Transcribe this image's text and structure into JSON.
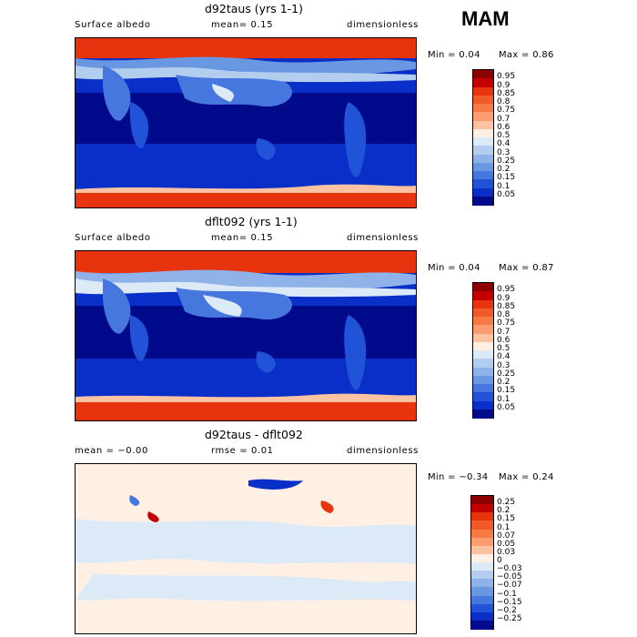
{
  "season": "MAM",
  "panels": [
    {
      "title": "d92taus (yrs 1-1)",
      "variable": "Surface albedo",
      "left_stat": "mean=   0.15",
      "mid_stat": "",
      "units": "dimensionless",
      "min_text": "Min =    0.04",
      "max_text": "Max =    0.86",
      "colorbar_labels": [
        "0.95",
        "0.9",
        "0.85",
        "0.8",
        "0.75",
        "0.7",
        "0.6",
        "0.5",
        "0.4",
        "0.3",
        "0.25",
        "0.2",
        "0.15",
        "0.1",
        "0.05"
      ],
      "colors": [
        "#8c0000",
        "#c40000",
        "#e8330f",
        "#f25a2a",
        "#f77a45",
        "#fb9d70",
        "#fcc3a3",
        "#fff0e3",
        "#dce9f7",
        "#b3cdee",
        "#8fb2e8",
        "#6a97e2",
        "#4577de",
        "#2153d8",
        "#0a2ec8",
        "#000a8a"
      ]
    },
    {
      "title": "dflt092 (yrs 1-1)",
      "variable": "Surface albedo",
      "left_stat": "mean=   0.15",
      "mid_stat": "",
      "units": "dimensionless",
      "min_text": "Min =    0.04",
      "max_text": "Max =    0.87",
      "colorbar_labels": [
        "0.95",
        "0.9",
        "0.85",
        "0.8",
        "0.75",
        "0.7",
        "0.6",
        "0.5",
        "0.4",
        "0.3",
        "0.25",
        "0.2",
        "0.15",
        "0.1",
        "0.05"
      ],
      "colors": [
        "#8c0000",
        "#c40000",
        "#e8330f",
        "#f25a2a",
        "#f77a45",
        "#fb9d70",
        "#fcc3a3",
        "#fff0e3",
        "#dce9f7",
        "#b3cdee",
        "#8fb2e8",
        "#6a97e2",
        "#4577de",
        "#2153d8",
        "#0a2ec8",
        "#000a8a"
      ]
    },
    {
      "title": "d92taus - dflt092",
      "variable": "",
      "left_stat": "mean =   −0.00",
      "mid_stat": "rmse =    0.01",
      "units": "dimensionless",
      "min_text": "Min =  −0.34",
      "max_text": "Max =    0.24",
      "colorbar_labels": [
        "0.25",
        "0.2",
        "0.15",
        "0.1",
        "0.07",
        "0.05",
        "0.03",
        "0",
        "−0.03",
        "−0.05",
        "−0.07",
        "−0.1",
        "−0.15",
        "−0.2",
        "−0.25"
      ],
      "colors": [
        "#8c0000",
        "#c40000",
        "#e8330f",
        "#f25a2a",
        "#f77a45",
        "#fb9d70",
        "#fcc3a3",
        "#fff0e3",
        "#dce9f7",
        "#b3cdee",
        "#8fb2e8",
        "#6a97e2",
        "#4577de",
        "#2153d8",
        "#0a2ec8",
        "#000a8a"
      ]
    }
  ],
  "chart_data": [
    {
      "type": "heatmap",
      "title": "d92taus (yrs 1-1)",
      "variable": "Surface albedo",
      "units": "dimensionless",
      "mean": 0.15,
      "min": 0.04,
      "max": 0.86,
      "colorbar_levels": [
        0.05,
        0.1,
        0.15,
        0.2,
        0.25,
        0.3,
        0.4,
        0.5,
        0.6,
        0.7,
        0.75,
        0.8,
        0.85,
        0.9,
        0.95
      ]
    },
    {
      "type": "heatmap",
      "title": "dflt092 (yrs 1-1)",
      "variable": "Surface albedo",
      "units": "dimensionless",
      "mean": 0.15,
      "min": 0.04,
      "max": 0.87,
      "colorbar_levels": [
        0.05,
        0.1,
        0.15,
        0.2,
        0.25,
        0.3,
        0.4,
        0.5,
        0.6,
        0.7,
        0.75,
        0.8,
        0.85,
        0.9,
        0.95
      ]
    },
    {
      "type": "heatmap",
      "title": "d92taus - dflt092",
      "units": "dimensionless",
      "mean": -0.0,
      "rmse": 0.01,
      "min": -0.34,
      "max": 0.24,
      "colorbar_levels": [
        -0.25,
        -0.2,
        -0.15,
        -0.1,
        -0.07,
        -0.05,
        -0.03,
        0,
        0.03,
        0.05,
        0.07,
        0.1,
        0.15,
        0.2,
        0.25
      ]
    }
  ]
}
